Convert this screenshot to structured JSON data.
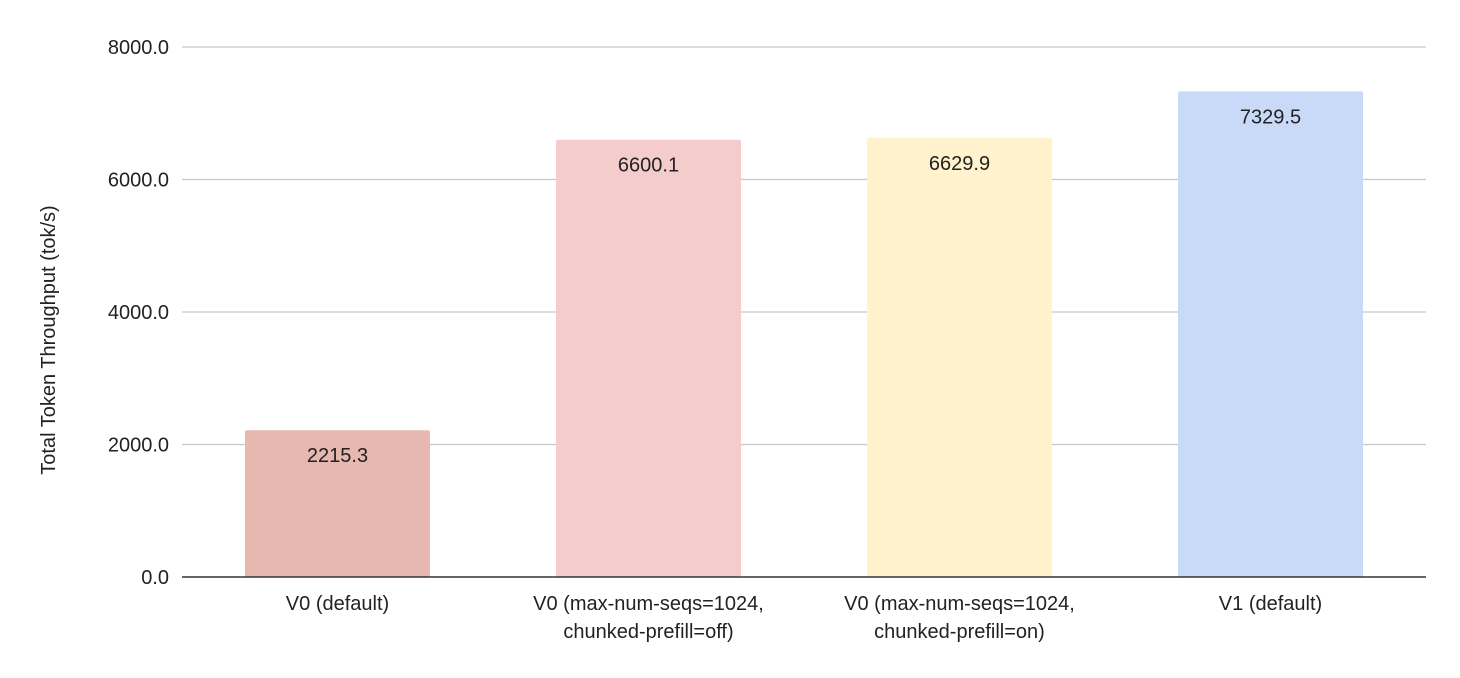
{
  "chart_data": {
    "type": "bar",
    "title": "",
    "xlabel": "",
    "ylabel": "Total Token Throughput (tok/s)",
    "ylim": [
      0,
      8000
    ],
    "yticks": [
      "0.0",
      "2000.0",
      "4000.0",
      "6000.0",
      "8000.0"
    ],
    "grid": true,
    "legend": "none",
    "categories": [
      {
        "line1": "V0 (default)",
        "line2": ""
      },
      {
        "line1": "V0 (max-num-seqs=1024,",
        "line2": "chunked-prefill=off)"
      },
      {
        "line1": "V0 (max-num-seqs=1024,",
        "line2": "chunked-prefill=on)"
      },
      {
        "line1": "V1 (default)",
        "line2": ""
      }
    ],
    "values": [
      2215.3,
      6600.1,
      6629.9,
      7329.5
    ],
    "value_labels": [
      "2215.3",
      "6600.1",
      "6629.9",
      "7329.5"
    ],
    "colors": [
      "#e6b8af",
      "#f4cccc",
      "#fff2cc",
      "#c9daf8"
    ]
  }
}
